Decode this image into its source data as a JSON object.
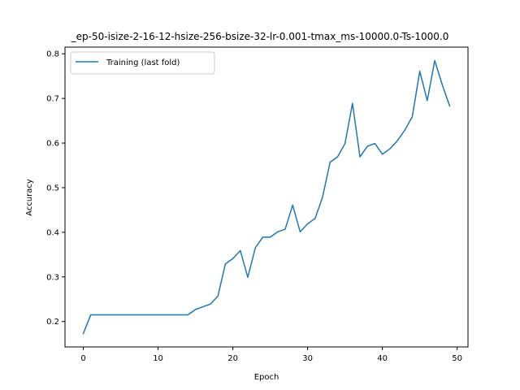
{
  "chart_data": {
    "type": "line",
    "title": "_ep-50-isize-2-16-12-hsize-256-bsize-32-lr-0.001-tmax_ms-10000.0-Ts-1000.0",
    "xlabel": "Epoch",
    "ylabel": "Accuracy",
    "xlim": [
      -2.45,
      51.45
    ],
    "ylim": [
      0.143,
      0.815
    ],
    "xticks": [
      0,
      10,
      20,
      30,
      40,
      50
    ],
    "yticks": [
      0.2,
      0.3,
      0.4,
      0.5,
      0.6,
      0.7,
      0.8
    ],
    "xtick_labels": [
      "0",
      "10",
      "20",
      "30",
      "40",
      "50"
    ],
    "ytick_labels": [
      "0.2",
      "0.3",
      "0.4",
      "0.5",
      "0.6",
      "0.7",
      "0.8"
    ],
    "grid": false,
    "legend_position": "top-left",
    "series": [
      {
        "name": "Training (last fold)",
        "color": "#1f77b4",
        "x": [
          0,
          1,
          2,
          3,
          4,
          5,
          6,
          7,
          8,
          9,
          10,
          11,
          12,
          13,
          14,
          15,
          16,
          17,
          18,
          19,
          20,
          21,
          22,
          23,
          24,
          25,
          26,
          27,
          28,
          29,
          30,
          31,
          32,
          33,
          34,
          35,
          36,
          37,
          38,
          39,
          40,
          41,
          42,
          43,
          44,
          45,
          46,
          47,
          48,
          49
        ],
        "y": [
          0.173,
          0.215,
          0.215,
          0.215,
          0.215,
          0.215,
          0.215,
          0.215,
          0.215,
          0.215,
          0.215,
          0.215,
          0.215,
          0.215,
          0.215,
          0.227,
          0.233,
          0.239,
          0.257,
          0.329,
          0.341,
          0.359,
          0.299,
          0.365,
          0.389,
          0.389,
          0.401,
          0.407,
          0.461,
          0.401,
          0.419,
          0.431,
          0.479,
          0.557,
          0.569,
          0.599,
          0.689,
          0.569,
          0.593,
          0.599,
          0.575,
          0.587,
          0.605,
          0.629,
          0.659,
          0.761,
          0.695,
          0.785,
          0.731,
          0.683
        ]
      }
    ]
  }
}
